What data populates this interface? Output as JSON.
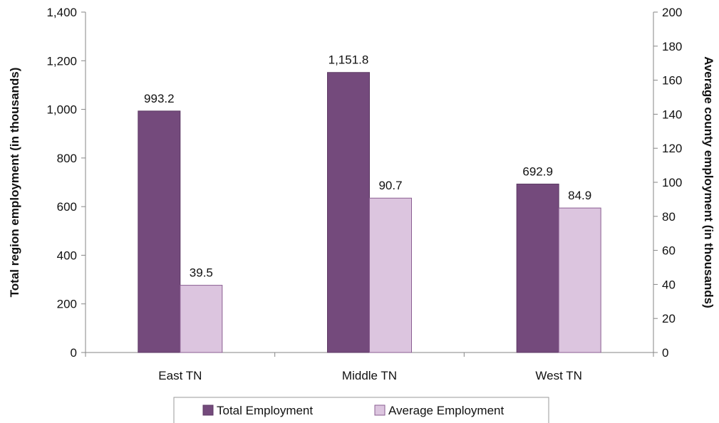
{
  "chart_data": {
    "type": "bar",
    "categories": [
      "East TN",
      "Middle TN",
      "West TN"
    ],
    "series": [
      {
        "name": "Total Employment",
        "axis": "left",
        "color": "#744a7c",
        "values": [
          993.2,
          1151.8,
          692.9
        ],
        "labels": [
          "993.2",
          "1,151.8",
          "692.9"
        ]
      },
      {
        "name": "Average Employment",
        "axis": "right",
        "color": "#dcc5df",
        "values": [
          39.5,
          90.7,
          84.9
        ],
        "labels": [
          "39.5",
          "90.7",
          "84.9"
        ]
      }
    ],
    "ylabel": "Total region employment (in thousands)",
    "ylabel_right": "Average county employment (in thousands)",
    "ylim": [
      0,
      1400
    ],
    "ylim_right": [
      0,
      200
    ],
    "yticks": [
      "0",
      "200",
      "400",
      "600",
      "800",
      "1,000",
      "1,200",
      "1,400"
    ],
    "yticks_right": [
      "0",
      "20",
      "40",
      "60",
      "80",
      "100",
      "120",
      "140",
      "160",
      "180",
      "200"
    ],
    "grid": false,
    "legend_position": "bottom"
  }
}
